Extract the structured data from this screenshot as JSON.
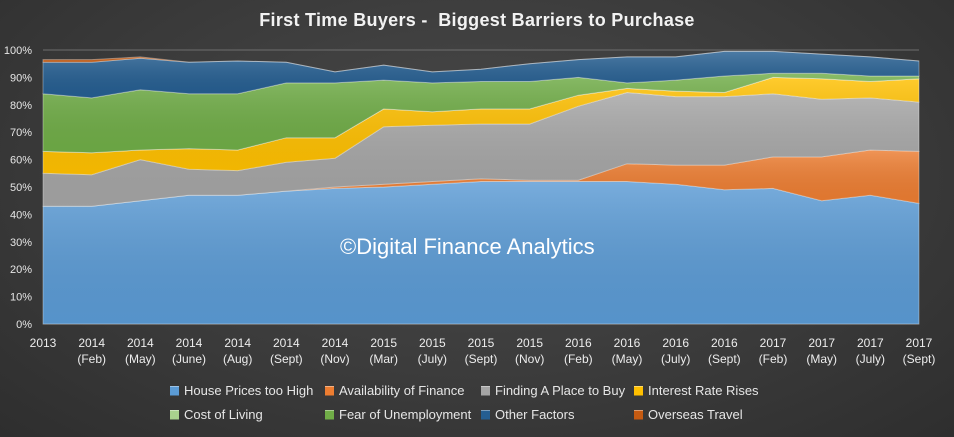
{
  "chart_data": {
    "type": "area",
    "stacked": true,
    "percent_stacked": true,
    "title": "First Time Buyers -  Biggest Barriers to Purchase",
    "xlabel": "",
    "ylabel": "",
    "ylim": [
      0,
      100
    ],
    "y_ticks": [
      "0%",
      "10%",
      "20%",
      "30%",
      "40%",
      "50%",
      "60%",
      "70%",
      "80%",
      "90%",
      "100%"
    ],
    "grid": true,
    "legend_position": "bottom",
    "categories": [
      [
        "2013",
        ""
      ],
      [
        "2014",
        "(Feb)"
      ],
      [
        "2014",
        "(May)"
      ],
      [
        "2014",
        "(June)"
      ],
      [
        "2014",
        "(Aug)"
      ],
      [
        "2014",
        "(Sept)"
      ],
      [
        "2014",
        "(Nov)"
      ],
      [
        "2015",
        "(Mar)"
      ],
      [
        "2015",
        "(July)"
      ],
      [
        "2015",
        "(Sept)"
      ],
      [
        "2015",
        "(Nov)"
      ],
      [
        "2016",
        "(Feb)"
      ],
      [
        "2016",
        "(May)"
      ],
      [
        "2016",
        "(July)"
      ],
      [
        "2016",
        "(Sept)"
      ],
      [
        "2017",
        "(Feb)"
      ],
      [
        "2017",
        "(May)"
      ],
      [
        "2017",
        "(July)"
      ],
      [
        "2017",
        "(Sept)"
      ]
    ],
    "series": [
      {
        "name": "House Prices too High",
        "color": "#5b9bd5",
        "values": [
          43,
          43,
          45,
          47,
          47,
          48.5,
          49.5,
          50,
          51,
          52,
          52,
          52,
          52,
          51,
          49,
          49.5,
          45,
          47,
          44
        ]
      },
      {
        "name": "Availability of Finance",
        "color": "#ed7d31",
        "values": [
          0,
          0,
          0,
          0,
          0,
          0,
          0.5,
          1,
          1,
          1,
          0.5,
          0.5,
          6.5,
          7,
          9,
          11.5,
          16,
          16.5,
          19
        ]
      },
      {
        "name": "Finding A Place to Buy",
        "color": "#a5a5a5",
        "values": [
          12,
          11.5,
          15,
          9.5,
          9,
          10.5,
          10.5,
          21,
          20.5,
          20,
          20.5,
          27,
          26,
          25,
          25,
          23,
          21,
          19,
          18
        ]
      },
      {
        "name": "Interest Rate Rises",
        "color": "#ffc000",
        "values": [
          8,
          8,
          3.5,
          7.5,
          7.5,
          9,
          7.5,
          6.5,
          5,
          5.5,
          5.5,
          4,
          1.5,
          2,
          1.5,
          6,
          7.5,
          6,
          8.5
        ]
      },
      {
        "name": "Cost of Living",
        "color": "#a9d18e",
        "values": [
          0,
          0,
          0,
          0,
          0,
          0,
          0,
          0,
          0,
          0,
          0,
          0,
          0,
          0,
          0,
          0,
          0,
          0,
          0
        ]
      },
      {
        "name": "Fear of Unemployment",
        "color": "#70ad47",
        "values": [
          21,
          20,
          22,
          20,
          20.5,
          20,
          20,
          10.5,
          10.5,
          10,
          10,
          6.5,
          2,
          4,
          6,
          1.5,
          2,
          2,
          1
        ]
      },
      {
        "name": "Other Factors",
        "color": "#255e91",
        "values": [
          11.5,
          13,
          11.5,
          11.5,
          12,
          7.5,
          4,
          5.5,
          4,
          4.5,
          6.5,
          6.5,
          9.5,
          8.5,
          9,
          8,
          7,
          7,
          5.5
        ]
      },
      {
        "name": "Overseas Travel",
        "color": "#c55a11",
        "values": [
          1,
          1,
          0.5,
          0,
          0,
          0,
          0,
          0,
          0,
          0,
          0,
          0,
          0,
          0,
          0,
          0,
          0,
          0,
          0
        ]
      }
    ]
  },
  "watermark": "©Digital Finance Analytics"
}
